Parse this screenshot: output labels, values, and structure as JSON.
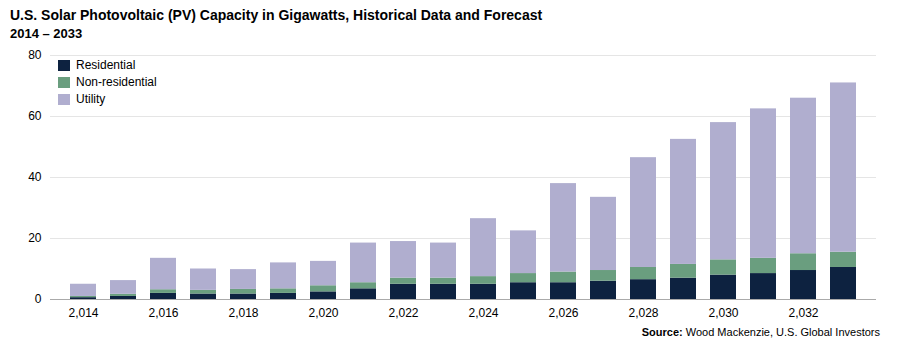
{
  "chart_data": {
    "type": "bar",
    "title": "U.S. Solar Photovoltaic (PV) Capacity in Gigawatts, Historical Data and Forecast",
    "subtitle": "2014 – 2033",
    "source": "Source: Wood Mackenzie, U.S. Global Investors",
    "categories": [
      2014,
      null,
      2016,
      null,
      2018,
      null,
      2020,
      null,
      2022,
      null,
      2024,
      null,
      2026,
      null,
      2028,
      null,
      2030,
      null,
      2032,
      null
    ],
    "series": [
      {
        "name": "Residential",
        "color": "#0d2240",
        "values": [
          0.6,
          1.0,
          2.0,
          1.8,
          1.8,
          2.0,
          2.5,
          3.5,
          5.0,
          5.0,
          5.0,
          5.5,
          5.5,
          6.0,
          6.5,
          7.0,
          8.0,
          8.5,
          9.5,
          10.5
        ]
      },
      {
        "name": "Non-residential",
        "color": "#6a9e7f",
        "values": [
          0.4,
          0.7,
          1.2,
          1.2,
          1.5,
          1.5,
          2.0,
          2.0,
          2.0,
          2.0,
          2.5,
          3.0,
          3.5,
          3.5,
          4.0,
          4.5,
          5.0,
          5.0,
          5.5,
          5.0
        ]
      },
      {
        "name": "Utility",
        "color": "#b0aecf",
        "values": [
          4.0,
          4.5,
          10.3,
          7.0,
          6.5,
          8.5,
          8.0,
          13.0,
          12.0,
          11.5,
          19.0,
          14.0,
          29.0,
          24.0,
          36.0,
          41.0,
          45.0,
          49.0,
          51.0,
          55.5
        ]
      }
    ],
    "ylim": [
      0,
      80
    ],
    "yticks": [
      0,
      20,
      40,
      60,
      80
    ],
    "grid": true,
    "legend": "upper left",
    "stacked": true
  }
}
